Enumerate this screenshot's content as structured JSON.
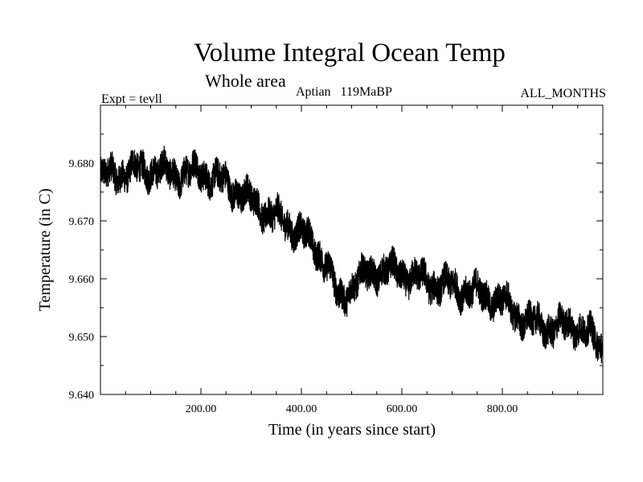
{
  "chart_data": {
    "type": "line",
    "title": "Volume Integral Ocean Temp",
    "subtitle": "Whole area",
    "experiment_label": "Expt = tevll",
    "period_label": "Aptian   119MaBP",
    "months_label": "ALL_MONTHS",
    "xlabel": "Time (in years since start)",
    "ylabel": "Temperature (in C)",
    "xlim": [
      0,
      1000
    ],
    "ylim": [
      9.64,
      9.69
    ],
    "x_ticks": [
      200,
      400,
      600,
      800
    ],
    "x_tick_labels": [
      "200.00",
      "400.00",
      "600.00",
      "800.00"
    ],
    "y_ticks": [
      9.64,
      9.65,
      9.66,
      9.67,
      9.68
    ],
    "y_tick_labels": [
      "9.640",
      "9.650",
      "9.660",
      "9.670",
      "9.680"
    ],
    "series": [
      {
        "name": "Volume integral ocean temperature",
        "color": "#000000",
        "trend_x": [
          0,
          50,
          100,
          150,
          200,
          250,
          300,
          350,
          400,
          450,
          475,
          500,
          550,
          600,
          650,
          700,
          750,
          800,
          850,
          900,
          950,
          1000
        ],
        "trend_y": [
          9.6775,
          9.6785,
          9.679,
          9.678,
          9.6785,
          9.6765,
          9.6735,
          9.6705,
          9.668,
          9.663,
          9.656,
          9.659,
          9.6615,
          9.661,
          9.6595,
          9.6585,
          9.6575,
          9.656,
          9.6525,
          9.6515,
          9.652,
          9.648
        ],
        "variability_amplitude": 0.0035
      }
    ]
  }
}
